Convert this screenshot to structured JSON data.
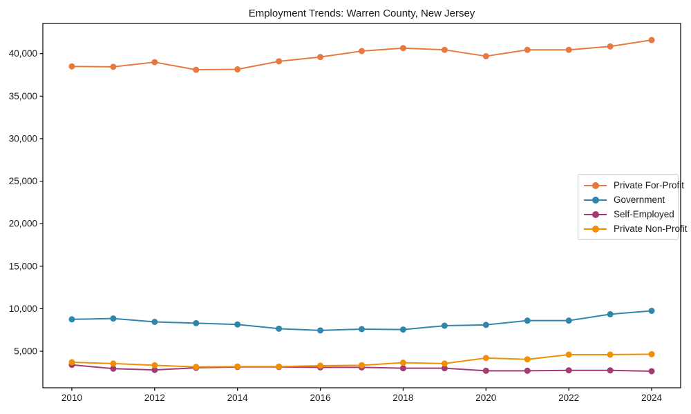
{
  "chart_data": {
    "type": "line",
    "title": "Employment Trends: Warren County, New Jersey",
    "xlabel": "",
    "ylabel": "",
    "x": [
      2010,
      2011,
      2012,
      2013,
      2014,
      2015,
      2016,
      2017,
      2018,
      2019,
      2020,
      2021,
      2022,
      2023,
      2024
    ],
    "series": [
      {
        "name": "Private For-Profit",
        "color": "#E8793E",
        "values": [
          38500,
          38450,
          39000,
          38100,
          38150,
          39100,
          39600,
          40300,
          40650,
          40450,
          39700,
          40450,
          40450,
          40850,
          41600
        ]
      },
      {
        "name": "Government",
        "color": "#2E86AB",
        "values": [
          8750,
          8850,
          8450,
          8300,
          8150,
          7650,
          7450,
          7600,
          7550,
          8000,
          8100,
          8600,
          8600,
          9350,
          9750
        ]
      },
      {
        "name": "Self-Employed",
        "color": "#A23B72",
        "values": [
          3400,
          2950,
          2800,
          3050,
          3150,
          3150,
          3100,
          3100,
          3000,
          3000,
          2700,
          2700,
          2750,
          2750,
          2650
        ]
      },
      {
        "name": "Private Non-Profit",
        "color": "#F18F01",
        "values": [
          3700,
          3550,
          3350,
          3150,
          3200,
          3200,
          3300,
          3350,
          3650,
          3550,
          4200,
          4050,
          4600,
          4600,
          4650
        ]
      }
    ],
    "xticks": {
      "values": [
        2010,
        2012,
        2014,
        2016,
        2018,
        2020,
        2022,
        2024
      ],
      "labels": [
        "2010",
        "2012",
        "2014",
        "2016",
        "2018",
        "2020",
        "2022",
        "2024"
      ]
    },
    "yticks": {
      "values": [
        5000,
        10000,
        15000,
        20000,
        25000,
        30000,
        35000,
        40000
      ],
      "labels": [
        "5,000",
        "10,000",
        "15,000",
        "20,000",
        "25,000",
        "30,000",
        "35,000",
        "40,000"
      ]
    },
    "xlim": [
      2009.3,
      2024.7
    ],
    "ylim": [
      700,
      43550
    ],
    "grid": false,
    "legend_position": "center right",
    "axis_color": "#000000",
    "text_color": "#1a1a1a",
    "background": "#ffffff"
  }
}
